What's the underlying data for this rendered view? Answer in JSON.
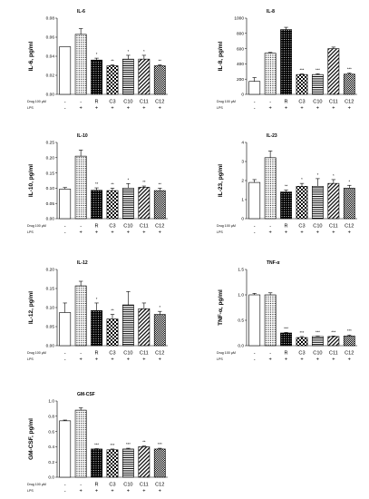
{
  "figure": {
    "row_labels": {
      "drug": "Drug 100 µM",
      "lps": "LPS"
    }
  },
  "chart_data": [
    {
      "type": "bar",
      "title": "IL-6",
      "ylabel": "IL-6, pg/ml",
      "ylim": [
        0,
        0.08
      ],
      "yticks": [
        "0.00",
        "0.02",
        "0.04",
        "0.06",
        "0.08"
      ],
      "categories": [
        "-",
        "-",
        "R",
        "C3",
        "C10",
        "C11",
        "C12"
      ],
      "lps": [
        "-",
        "+",
        "+",
        "+",
        "+",
        "+",
        "+"
      ],
      "values": [
        0.05,
        0.063,
        0.036,
        0.03,
        0.037,
        0.037,
        0.03
      ],
      "errors": [
        0.0,
        0.006,
        0.002,
        0.001,
        0.004,
        0.004,
        0.001
      ],
      "significance": [
        "",
        "",
        "*",
        "**",
        "*",
        "*",
        "**"
      ]
    },
    {
      "type": "bar",
      "title": "IL-8",
      "ylabel": "IL-8, pg/ml",
      "ylim": [
        0,
        1000
      ],
      "yticks": [
        "0",
        "200",
        "400",
        "600",
        "800",
        "1000"
      ],
      "categories": [
        "-",
        "-",
        "R",
        "C3",
        "C10",
        "C11",
        "C12"
      ],
      "lps": [
        "-",
        "+",
        "+",
        "+",
        "+",
        "+",
        "+"
      ],
      "values": [
        170,
        540,
        850,
        260,
        260,
        600,
        265
      ],
      "errors": [
        50,
        10,
        30,
        10,
        10,
        20,
        15
      ],
      "significance": [
        "",
        "",
        "",
        "***",
        "***",
        "",
        "***"
      ]
    },
    {
      "type": "bar",
      "title": "IL-10",
      "ylabel": "IL-10, pg/ml",
      "ylim": [
        0,
        0.25
      ],
      "yticks": [
        "0.00",
        "0.05",
        "0.10",
        "0.15",
        "0.20",
        "0.25"
      ],
      "categories": [
        "-",
        "-",
        "R",
        "C3",
        "C10",
        "C11",
        "C12"
      ],
      "lps": [
        "-",
        "+",
        "+",
        "+",
        "+",
        "+",
        "+"
      ],
      "values": [
        0.097,
        0.205,
        0.093,
        0.092,
        0.1,
        0.103,
        0.092
      ],
      "errors": [
        0.005,
        0.02,
        0.008,
        0.008,
        0.015,
        0.004,
        0.008
      ],
      "significance": [
        "",
        "",
        "**",
        "**",
        "*",
        "**",
        "**"
      ]
    },
    {
      "type": "bar",
      "title": "IL-23",
      "ylabel": "IL-23, pg/ml",
      "ylim": [
        0,
        4
      ],
      "yticks": [
        "0",
        "1",
        "2",
        "3",
        "4"
      ],
      "categories": [
        "-",
        "-",
        "R",
        "C3",
        "C10",
        "C11",
        "C12"
      ],
      "lps": [
        "-",
        "+",
        "+",
        "+",
        "+",
        "+",
        "+"
      ],
      "values": [
        1.9,
        3.2,
        1.4,
        1.7,
        1.7,
        1.85,
        1.6
      ],
      "errors": [
        0.15,
        0.35,
        0.1,
        0.15,
        0.4,
        0.2,
        0.15
      ],
      "significance": [
        "",
        "",
        "**",
        "*",
        "*",
        "*",
        "*"
      ]
    },
    {
      "type": "bar",
      "title": "IL-12",
      "ylabel": "IL-12, pg/ml",
      "ylim": [
        0,
        0.2
      ],
      "yticks": [
        "0.00",
        "0.05",
        "0.10",
        "0.15",
        "0.20"
      ],
      "categories": [
        "-",
        "-",
        "R",
        "C3",
        "C10",
        "C11",
        "C12"
      ],
      "lps": [
        "-",
        "+",
        "+",
        "+",
        "+",
        "+",
        "+"
      ],
      "values": [
        0.087,
        0.157,
        0.092,
        0.07,
        0.107,
        0.097,
        0.082
      ],
      "errors": [
        0.025,
        0.012,
        0.02,
        0.012,
        0.035,
        0.015,
        0.008
      ],
      "significance": [
        "",
        "",
        "*",
        "**",
        "",
        "",
        "*"
      ]
    },
    {
      "type": "bar",
      "title": "TNF-α",
      "ylabel": "TNF-α, pg/ml",
      "ylim": [
        0,
        1.5
      ],
      "yticks": [
        "0.0",
        "0.5",
        "1.0",
        "1.5"
      ],
      "categories": [
        "-",
        "-",
        "R",
        "C3",
        "C10",
        "C11",
        "C12"
      ],
      "lps": [
        "-",
        "+",
        "+",
        "+",
        "+",
        "+",
        "+"
      ],
      "values": [
        1.0,
        1.0,
        0.25,
        0.16,
        0.18,
        0.18,
        0.19
      ],
      "errors": [
        0.03,
        0.04,
        0.01,
        0.02,
        0.01,
        0.01,
        0.02
      ],
      "significance": [
        "",
        "",
        "***",
        "***",
        "***",
        "***",
        "***"
      ]
    },
    {
      "type": "bar",
      "title": "GM-CSF",
      "ylabel": "GM-CSF, pg/ml",
      "ylim": [
        0,
        1.0
      ],
      "yticks": [
        "0.0",
        "0.2",
        "0.4",
        "0.6",
        "0.8",
        "1.0"
      ],
      "categories": [
        "-",
        "-",
        "R",
        "C3",
        "C10",
        "C11",
        "C12"
      ],
      "lps": [
        "-",
        "+",
        "+",
        "+",
        "+",
        "+",
        "+"
      ],
      "values": [
        0.74,
        0.88,
        0.37,
        0.36,
        0.37,
        0.4,
        0.37
      ],
      "errors": [
        0.01,
        0.03,
        0.005,
        0.01,
        0.01,
        0.01,
        0.01
      ],
      "significance": [
        "",
        "",
        "***",
        "***",
        "***",
        "**",
        "***"
      ]
    }
  ]
}
